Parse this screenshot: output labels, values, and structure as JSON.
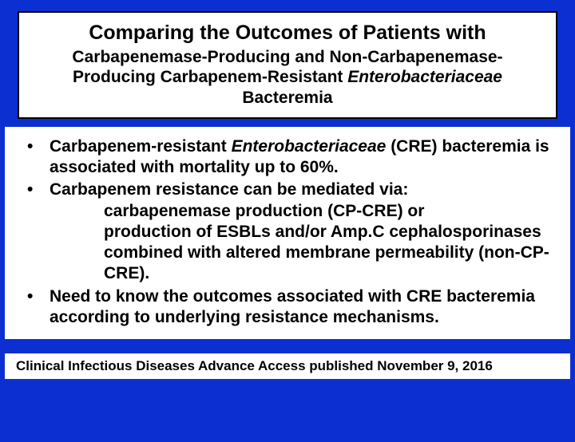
{
  "colors": {
    "page_background": "#0b2fd1",
    "box_background": "#ffffff",
    "text": "#000000",
    "title_border": "#000000"
  },
  "typography": {
    "family": "Arial",
    "title_line1_size_pt": 19,
    "title_line2_size_pt": 16,
    "body_size_pt": 16,
    "footer_size_pt": 13,
    "weight": "bold"
  },
  "title": {
    "line1": "Comparing the Outcomes of Patients with",
    "line2_a": "Carbapenemase-Producing and Non-Carbapenemase-Producing Carbapenem-Resistant ",
    "line2_italic": "Enterobacteriaceae",
    "line2_b": " Bacteremia"
  },
  "bullets": [
    {
      "pre": "Carbapenem-resistant ",
      "italic": "Enterobacteriaceae",
      "post": " (CRE) bacteremia is associated with mortality up to 60%."
    },
    {
      "pre": "Carbapenem resistance can be mediated via:",
      "italic": "",
      "post": "",
      "subs": [
        "carbapenemase production (CP-CRE) or",
        "production of ESBLs and/or Amp.C cephalosporinases combined with altered membrane permeability (non-CP-CRE)."
      ]
    },
    {
      "pre": "Need to know the outcomes associated with CRE bacteremia according to underlying resistance mechanisms.",
      "italic": "",
      "post": ""
    }
  ],
  "footer": "Clinical Infectious Diseases Advance Access published November 9, 2016"
}
